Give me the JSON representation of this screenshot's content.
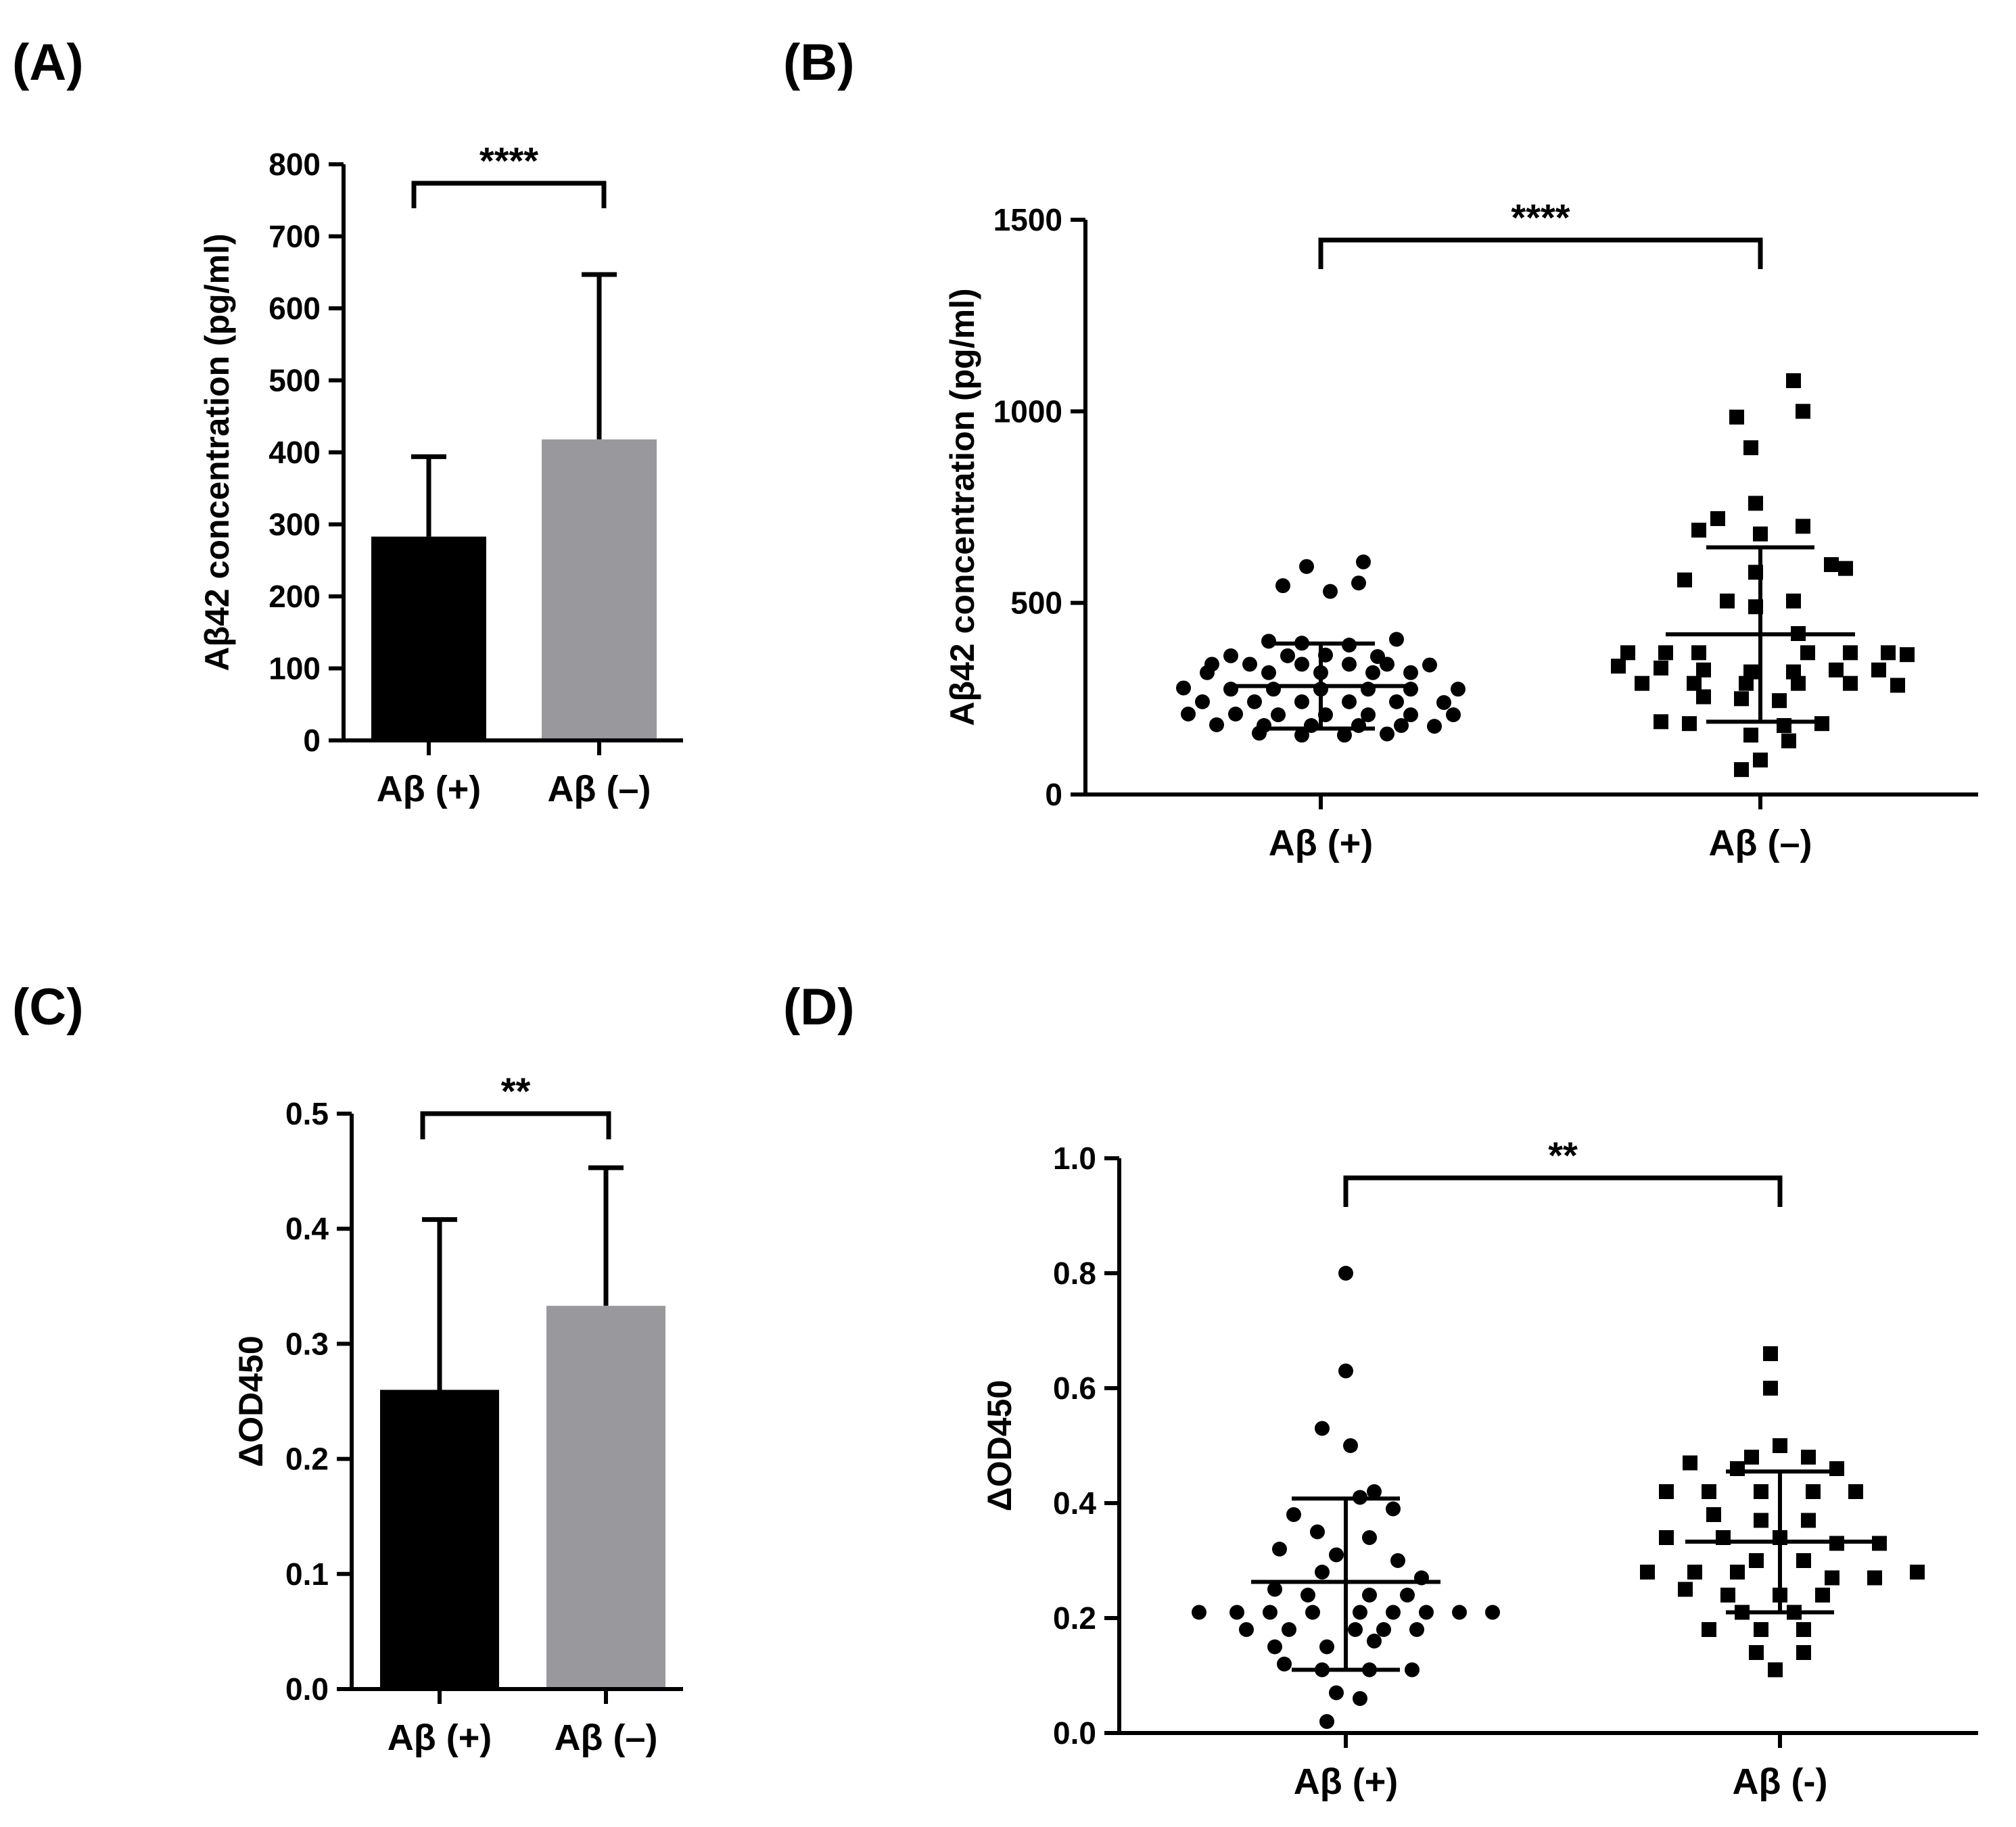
{
  "colors": {
    "black_bar": "#000000",
    "gray_bar": "#99999d",
    "axis": "#000000",
    "background": "#ffffff"
  },
  "chart_data": [
    {
      "panel": "(A)",
      "type": "bar",
      "ylabel": "Aβ42 concentration (pg/ml)",
      "categories": [
        "Aβ  (+)",
        "Aβ (–)"
      ],
      "values": [
        283,
        418
      ],
      "error_plus": [
        111,
        229
      ],
      "ylim": [
        0,
        800
      ],
      "yticks": [
        "0",
        "100",
        "200",
        "300",
        "400",
        "500",
        "600",
        "700",
        "800"
      ],
      "significance": "****"
    },
    {
      "panel": "(B)",
      "type": "scatter",
      "ylabel": "Aβ42 concentration (pg/ml)",
      "categories": [
        "Aβ  (+)",
        "Aβ (–)"
      ],
      "ylim": [
        0,
        1500
      ],
      "yticks": [
        "0",
        "500",
        "1000",
        "1500"
      ],
      "significance": "****",
      "series": [
        {
          "name": "Aβ (+)",
          "marker": "circle",
          "mean": 283,
          "sd_low": 172,
          "sd_high": 394,
          "points": [
            [
              0.09,
              607
            ],
            [
              -0.03,
              595
            ],
            [
              0.08,
              552
            ],
            [
              -0.08,
              545
            ],
            [
              0.02,
              530
            ],
            [
              -0.11,
              400
            ],
            [
              0.16,
              405
            ],
            [
              -0.04,
              395
            ],
            [
              0.06,
              390
            ],
            [
              -0.19,
              362
            ],
            [
              -0.07,
              362
            ],
            [
              0.01,
              364
            ],
            [
              0.12,
              360
            ],
            [
              -0.23,
              340
            ],
            [
              -0.15,
              340
            ],
            [
              -0.04,
              340
            ],
            [
              0.06,
              340
            ],
            [
              0.14,
              340
            ],
            [
              0.23,
              338
            ],
            [
              -0.24,
              318
            ],
            [
              -0.11,
              318
            ],
            [
              0.0,
              318
            ],
            [
              0.11,
              318
            ],
            [
              0.19,
              318
            ],
            [
              -0.29,
              278
            ],
            [
              -0.19,
              275
            ],
            [
              -0.1,
              275
            ],
            [
              0.0,
              275
            ],
            [
              0.1,
              275
            ],
            [
              0.19,
              275
            ],
            [
              0.29,
              275
            ],
            [
              -0.25,
              242
            ],
            [
              -0.14,
              242
            ],
            [
              -0.04,
              242
            ],
            [
              0.06,
              242
            ],
            [
              0.16,
              242
            ],
            [
              0.26,
              240
            ],
            [
              -0.28,
              210
            ],
            [
              -0.18,
              210
            ],
            [
              -0.09,
              208
            ],
            [
              0.01,
              208
            ],
            [
              0.1,
              208
            ],
            [
              0.19,
              208
            ],
            [
              0.28,
              208
            ],
            [
              -0.22,
              182
            ],
            [
              -0.12,
              180
            ],
            [
              -0.02,
              180
            ],
            [
              0.08,
              180
            ],
            [
              0.17,
              180
            ],
            [
              0.24,
              178
            ],
            [
              -0.13,
              160
            ],
            [
              -0.04,
              155
            ],
            [
              0.05,
              155
            ],
            [
              0.14,
              158
            ]
          ]
        },
        {
          "name": "Aβ (–)",
          "marker": "square",
          "mean": 418,
          "sd_low": 190,
          "sd_high": 645,
          "points": [
            [
              0.07,
              1080
            ],
            [
              0.09,
              1000
            ],
            [
              -0.05,
              985
            ],
            [
              -0.02,
              905
            ],
            [
              -0.01,
              760
            ],
            [
              -0.09,
              720
            ],
            [
              0.09,
              700
            ],
            [
              -0.13,
              690
            ],
            [
              0.0,
              680
            ],
            [
              0.15,
              600
            ],
            [
              0.18,
              590
            ],
            [
              -0.01,
              580
            ],
            [
              -0.16,
              560
            ],
            [
              -0.07,
              505
            ],
            [
              0.07,
              505
            ],
            [
              -0.01,
              490
            ],
            [
              0.08,
              420
            ],
            [
              -0.28,
              370
            ],
            [
              -0.2,
              370
            ],
            [
              -0.13,
              370
            ],
            [
              0.1,
              370
            ],
            [
              0.19,
              370
            ],
            [
              0.27,
              370
            ],
            [
              0.31,
              365
            ],
            [
              -0.3,
              335
            ],
            [
              -0.21,
              330
            ],
            [
              -0.12,
              325
            ],
            [
              -0.02,
              320
            ],
            [
              0.07,
              320
            ],
            [
              0.16,
              325
            ],
            [
              0.25,
              325
            ],
            [
              -0.25,
              290
            ],
            [
              -0.14,
              290
            ],
            [
              -0.03,
              290
            ],
            [
              0.08,
              290
            ],
            [
              0.19,
              290
            ],
            [
              0.29,
              285
            ],
            [
              -0.12,
              255
            ],
            [
              -0.04,
              250
            ],
            [
              0.04,
              245
            ],
            [
              -0.21,
              190
            ],
            [
              -0.15,
              185
            ],
            [
              0.05,
              180
            ],
            [
              0.13,
              185
            ],
            [
              -0.02,
              155
            ],
            [
              0.06,
              140
            ],
            [
              0.0,
              90
            ],
            [
              -0.04,
              65
            ]
          ]
        }
      ]
    },
    {
      "panel": "(C)",
      "type": "bar",
      "ylabel": "ΔOD450",
      "categories": [
        "Aβ (+)",
        "Aβ (–)"
      ],
      "values": [
        0.26,
        0.333
      ],
      "error_plus": [
        0.148,
        0.12
      ],
      "ylim": [
        0,
        0.5
      ],
      "yticks": [
        "0.0",
        "0.1",
        "0.2",
        "0.3",
        "0.4",
        "0.5"
      ],
      "significance": "**"
    },
    {
      "panel": "(D)",
      "type": "scatter",
      "ylabel": "ΔOD450",
      "categories": [
        "Aβ (+)",
        "Aβ (-)"
      ],
      "ylim": [
        0,
        1.0
      ],
      "yticks": [
        "0.0",
        "0.2",
        "0.4",
        "0.6",
        "0.8",
        "1.0"
      ],
      "significance": "**",
      "series": [
        {
          "name": "Aβ (+)",
          "marker": "circle",
          "mean": 0.263,
          "sd_low": 0.11,
          "sd_high": 0.408,
          "points": [
            [
              0.0,
              0.8
            ],
            [
              0.0,
              0.63
            ],
            [
              -0.05,
              0.53
            ],
            [
              0.01,
              0.5
            ],
            [
              0.03,
              0.41
            ],
            [
              0.06,
              0.42
            ],
            [
              -0.11,
              0.38
            ],
            [
              0.1,
              0.39
            ],
            [
              -0.06,
              0.35
            ],
            [
              0.05,
              0.34
            ],
            [
              -0.14,
              0.32
            ],
            [
              -0.02,
              0.31
            ],
            [
              0.11,
              0.3
            ],
            [
              -0.05,
              0.28
            ],
            [
              0.16,
              0.27
            ],
            [
              -0.15,
              0.25
            ],
            [
              -0.08,
              0.24
            ],
            [
              0.05,
              0.24
            ],
            [
              0.13,
              0.24
            ],
            [
              -0.31,
              0.21
            ],
            [
              -0.23,
              0.21
            ],
            [
              -0.16,
              0.21
            ],
            [
              -0.07,
              0.21
            ],
            [
              0.03,
              0.21
            ],
            [
              0.1,
              0.21
            ],
            [
              0.17,
              0.21
            ],
            [
              0.24,
              0.21
            ],
            [
              0.31,
              0.21
            ],
            [
              -0.21,
              0.18
            ],
            [
              -0.12,
              0.18
            ],
            [
              0.02,
              0.18
            ],
            [
              0.08,
              0.18
            ],
            [
              0.15,
              0.18
            ],
            [
              -0.15,
              0.15
            ],
            [
              -0.04,
              0.15
            ],
            [
              0.06,
              0.16
            ],
            [
              -0.13,
              0.12
            ],
            [
              -0.05,
              0.11
            ],
            [
              0.05,
              0.11
            ],
            [
              0.14,
              0.11
            ],
            [
              -0.02,
              0.07
            ],
            [
              0.03,
              0.06
            ],
            [
              -0.04,
              0.02
            ]
          ]
        },
        {
          "name": "Aβ (-)",
          "marker": "square",
          "mean": 0.333,
          "sd_low": 0.21,
          "sd_high": 0.455,
          "points": [
            [
              -0.02,
              0.66
            ],
            [
              -0.02,
              0.6
            ],
            [
              0.0,
              0.5
            ],
            [
              -0.06,
              0.48
            ],
            [
              0.06,
              0.48
            ],
            [
              -0.19,
              0.47
            ],
            [
              -0.09,
              0.46
            ],
            [
              0.12,
              0.46
            ],
            [
              -0.24,
              0.42
            ],
            [
              -0.15,
              0.42
            ],
            [
              -0.04,
              0.42
            ],
            [
              0.07,
              0.42
            ],
            [
              0.16,
              0.42
            ],
            [
              -0.14,
              0.38
            ],
            [
              -0.04,
              0.37
            ],
            [
              0.06,
              0.37
            ],
            [
              -0.24,
              0.34
            ],
            [
              -0.12,
              0.34
            ],
            [
              0.0,
              0.34
            ],
            [
              0.12,
              0.33
            ],
            [
              0.21,
              0.33
            ],
            [
              -0.05,
              0.3
            ],
            [
              0.05,
              0.3
            ],
            [
              -0.28,
              0.28
            ],
            [
              -0.18,
              0.28
            ],
            [
              -0.09,
              0.28
            ],
            [
              0.11,
              0.27
            ],
            [
              0.2,
              0.27
            ],
            [
              0.29,
              0.28
            ],
            [
              -0.2,
              0.25
            ],
            [
              -0.11,
              0.24
            ],
            [
              0.0,
              0.24
            ],
            [
              0.09,
              0.24
            ],
            [
              -0.08,
              0.21
            ],
            [
              0.03,
              0.21
            ],
            [
              -0.15,
              0.18
            ],
            [
              -0.04,
              0.18
            ],
            [
              0.05,
              0.18
            ],
            [
              -0.05,
              0.14
            ],
            [
              0.05,
              0.14
            ],
            [
              -0.01,
              0.11
            ]
          ]
        }
      ]
    }
  ]
}
